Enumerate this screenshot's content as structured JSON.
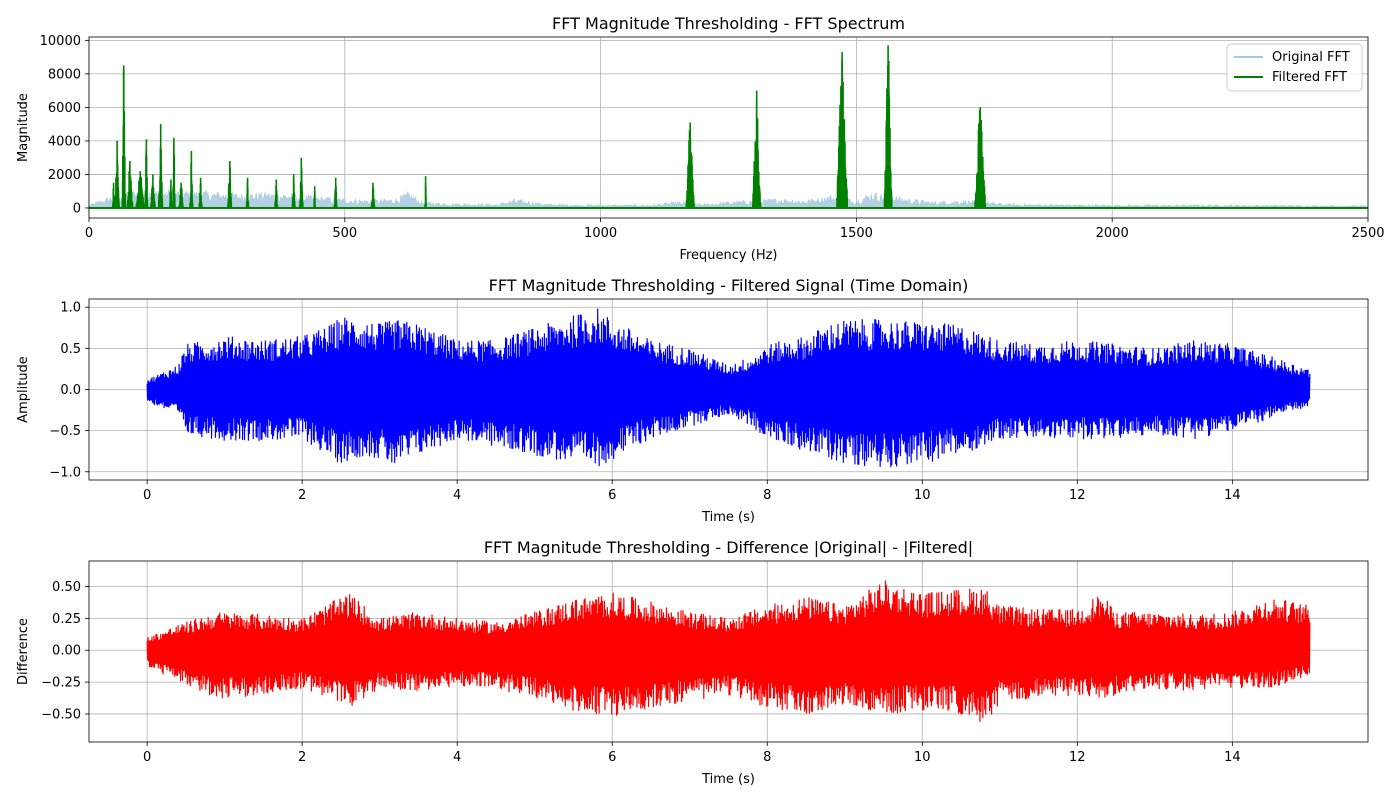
{
  "figure": {
    "background": "#ffffff"
  },
  "chart_data": [
    {
      "type": "line",
      "title": "FFT Magnitude Thresholding - FFT Spectrum",
      "xlabel": "Frequency (Hz)",
      "ylabel": "Magnitude",
      "xlim": [
        0,
        2500
      ],
      "ylim": [
        -600,
        10200
      ],
      "xticks": [
        0,
        500,
        1000,
        1500,
        2000,
        2500
      ],
      "xtick_labels": [
        "0",
        "500",
        "1000",
        "1500",
        "2000",
        "2500"
      ],
      "yticks": [
        0,
        2000,
        4000,
        6000,
        8000,
        10000
      ],
      "ytick_labels": [
        "0",
        "2000",
        "4000",
        "6000",
        "8000",
        "10000"
      ],
      "grid": true,
      "legend": {
        "position": "top-right",
        "entries": [
          "Original FFT",
          "Filtered FFT"
        ]
      },
      "series": [
        {
          "name": "Original FFT",
          "color": "#a7c8e0",
          "style": "noise-envelope",
          "x": [
            0,
            40,
            100,
            200,
            300,
            350,
            400,
            450,
            500,
            550,
            600,
            625,
            650,
            700,
            800,
            830,
            900,
            1000,
            1100,
            1150,
            1200,
            1250,
            1300,
            1350,
            1400,
            1450,
            1500,
            1530,
            1560,
            1600,
            1650,
            1700,
            1750,
            1800,
            2000,
            2200,
            2500
          ],
          "y": [
            200,
            700,
            1200,
            1100,
            900,
            1000,
            900,
            700,
            600,
            500,
            600,
            1000,
            400,
            300,
            250,
            550,
            250,
            200,
            200,
            400,
            250,
            400,
            500,
            600,
            500,
            800,
            500,
            1000,
            800,
            600,
            400,
            500,
            400,
            250,
            200,
            200,
            150
          ]
        },
        {
          "name": "Filtered FFT",
          "color": "#008000",
          "style": "peak-clusters",
          "clusters": [
            {
              "center": 48,
              "width": 3,
              "peak": 1500
            },
            {
              "center": 55,
              "width": 8,
              "peak": 4000
            },
            {
              "center": 68,
              "width": 6,
              "peak": 8500
            },
            {
              "center": 80,
              "width": 10,
              "peak": 2800
            },
            {
              "center": 100,
              "width": 15,
              "peak": 2200
            },
            {
              "center": 112,
              "width": 5,
              "peak": 4100
            },
            {
              "center": 125,
              "width": 8,
              "peak": 2000
            },
            {
              "center": 140,
              "width": 7,
              "peak": 5000
            },
            {
              "center": 160,
              "width": 4,
              "peak": 1700
            },
            {
              "center": 166,
              "width": 4,
              "peak": 4200
            },
            {
              "center": 180,
              "width": 8,
              "peak": 1500
            },
            {
              "center": 200,
              "width": 5,
              "peak": 3400
            },
            {
              "center": 218,
              "width": 5,
              "peak": 1800
            },
            {
              "center": 275,
              "width": 7,
              "peak": 2800
            },
            {
              "center": 310,
              "width": 4,
              "peak": 1800
            },
            {
              "center": 366,
              "width": 5,
              "peak": 1700
            },
            {
              "center": 400,
              "width": 5,
              "peak": 2000
            },
            {
              "center": 415,
              "width": 6,
              "peak": 3000
            },
            {
              "center": 441,
              "width": 3,
              "peak": 1300
            },
            {
              "center": 482,
              "width": 5,
              "peak": 1800
            },
            {
              "center": 555,
              "width": 6,
              "peak": 1500
            },
            {
              "center": 658,
              "width": 2,
              "peak": 1900
            },
            {
              "center": 1175,
              "width": 15,
              "peak": 5100
            },
            {
              "center": 1305,
              "width": 15,
              "peak": 7000
            },
            {
              "center": 1472,
              "width": 20,
              "peak": 9300
            },
            {
              "center": 1562,
              "width": 14,
              "peak": 9700
            },
            {
              "center": 1742,
              "width": 20,
              "peak": 6000
            }
          ]
        }
      ]
    },
    {
      "type": "line",
      "title": "FFT Magnitude Thresholding - Filtered Signal (Time Domain)",
      "xlabel": "Time (s)",
      "ylabel": "Amplitude",
      "xlim": [
        -0.75,
        15.75
      ],
      "ylim": [
        -1.1,
        1.1
      ],
      "xticks": [
        0,
        2,
        4,
        6,
        8,
        10,
        12,
        14
      ],
      "xtick_labels": [
        "0",
        "2",
        "4",
        "6",
        "8",
        "10",
        "12",
        "14"
      ],
      "yticks": [
        -1.0,
        -0.5,
        0.0,
        0.5,
        1.0
      ],
      "ytick_labels": [
        "−1.0",
        "−0.5",
        "0.0",
        "0.5",
        "1.0"
      ],
      "grid": true,
      "series": [
        {
          "color": "#0000ff",
          "style": "waveform-envelope",
          "x": [
            0,
            0.4,
            0.5,
            0.9,
            1.0,
            1.5,
            2.0,
            2.4,
            2.5,
            2.8,
            3.0,
            3.2,
            3.5,
            4.0,
            4.5,
            5.0,
            5.5,
            5.8,
            6.0,
            6.5,
            7.0,
            7.5,
            7.8,
            8.0,
            8.5,
            8.8,
            9.0,
            9.5,
            10.0,
            10.5,
            11.0,
            11.5,
            12.0,
            12.5,
            13.0,
            13.5,
            14.0,
            14.5,
            15.0
          ],
          "upper": [
            0.12,
            0.3,
            0.55,
            0.62,
            0.65,
            0.6,
            0.65,
            0.8,
            0.9,
            0.85,
            0.8,
            0.85,
            0.8,
            0.6,
            0.6,
            0.75,
            0.9,
            1.0,
            0.85,
            0.6,
            0.5,
            0.3,
            0.4,
            0.55,
            0.65,
            0.8,
            0.85,
            0.85,
            0.82,
            0.78,
            0.6,
            0.55,
            0.6,
            0.55,
            0.5,
            0.6,
            0.55,
            0.4,
            0.25
          ],
          "lower": [
            -0.15,
            -0.3,
            -0.55,
            -0.6,
            -0.62,
            -0.62,
            -0.6,
            -0.85,
            -0.9,
            -0.8,
            -0.85,
            -0.95,
            -0.8,
            -0.6,
            -0.7,
            -0.8,
            -0.9,
            -0.95,
            -0.85,
            -0.6,
            -0.45,
            -0.3,
            -0.45,
            -0.6,
            -0.75,
            -0.85,
            -0.9,
            -0.95,
            -0.9,
            -0.8,
            -0.6,
            -0.6,
            -0.6,
            -0.6,
            -0.55,
            -0.6,
            -0.5,
            -0.35,
            -0.2
          ]
        }
      ]
    },
    {
      "type": "line",
      "title": "FFT Magnitude Thresholding - Difference |Original| - |Filtered|",
      "xlabel": "Time (s)",
      "ylabel": "Difference",
      "xlim": [
        -0.75,
        15.75
      ],
      "ylim": [
        -0.72,
        0.7
      ],
      "xticks": [
        0,
        2,
        4,
        6,
        8,
        10,
        12,
        14
      ],
      "xtick_labels": [
        "0",
        "2",
        "4",
        "6",
        "8",
        "10",
        "12",
        "14"
      ],
      "yticks": [
        -0.5,
        -0.25,
        0.0,
        0.25,
        0.5
      ],
      "ytick_labels": [
        "−0.50",
        "−0.25",
        "0.00",
        "0.25",
        "0.50"
      ],
      "grid": true,
      "series": [
        {
          "color": "#ff0000",
          "style": "waveform-envelope",
          "x": [
            0,
            0.4,
            0.9,
            1.5,
            2.0,
            2.6,
            3.0,
            3.5,
            4.0,
            4.5,
            5.0,
            5.5,
            6.0,
            6.5,
            7.0,
            7.5,
            8.0,
            8.5,
            9.0,
            9.5,
            10.0,
            10.5,
            10.8,
            11.0,
            11.5,
            12.0,
            12.3,
            12.5,
            13.0,
            13.5,
            14.0,
            14.5,
            15.0
          ],
          "upper": [
            0.1,
            0.2,
            0.3,
            0.28,
            0.25,
            0.45,
            0.25,
            0.3,
            0.25,
            0.22,
            0.3,
            0.4,
            0.45,
            0.38,
            0.3,
            0.25,
            0.35,
            0.42,
            0.35,
            0.55,
            0.45,
            0.48,
            0.5,
            0.35,
            0.32,
            0.32,
            0.45,
            0.3,
            0.3,
            0.28,
            0.3,
            0.42,
            0.35
          ],
          "lower": [
            -0.12,
            -0.25,
            -0.38,
            -0.35,
            -0.3,
            -0.45,
            -0.3,
            -0.32,
            -0.28,
            -0.3,
            -0.38,
            -0.48,
            -0.52,
            -0.45,
            -0.4,
            -0.35,
            -0.45,
            -0.52,
            -0.42,
            -0.5,
            -0.48,
            -0.5,
            -0.6,
            -0.42,
            -0.38,
            -0.35,
            -0.4,
            -0.35,
            -0.3,
            -0.32,
            -0.3,
            -0.3,
            -0.2
          ]
        }
      ]
    }
  ]
}
